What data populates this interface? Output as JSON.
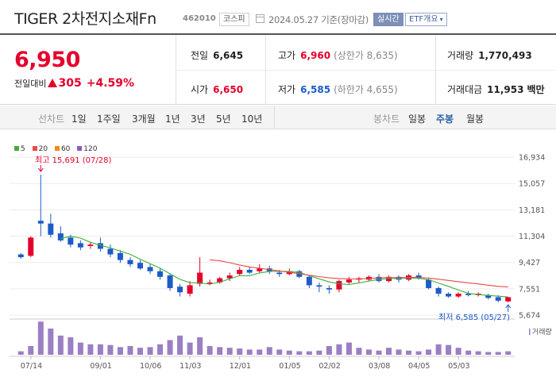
{
  "header": {
    "name": "TIGER 2차전지소재Fn",
    "code": "462010",
    "market": "코스피",
    "date": "2024.05.27 기준(장마감)",
    "realtime": "실시간",
    "etf_info": "ETF개요"
  },
  "summary": {
    "price": "6,950",
    "change_label": "전일대비",
    "change": "305",
    "change_pct": "+4.59%",
    "prev_label": "전일",
    "prev": "6,645",
    "open_label": "시가",
    "open": "6,650",
    "high_label": "고가",
    "high": "6,960",
    "high_limit": "(상한가 8,635)",
    "low_label": "저가",
    "low": "6,585",
    "low_limit": "(하한가 4,655)",
    "volume_label": "거래량",
    "volume": "1,770,493",
    "amount_label": "거래대금",
    "amount": "11,953",
    "amount_unit": "백만"
  },
  "period": {
    "line_title": "선차트",
    "line_items": [
      "1일",
      "1주일",
      "3개월",
      "1년",
      "3년",
      "5년",
      "10년"
    ],
    "candle_title": "봉차트",
    "candle_items": [
      "일봉",
      "주봉",
      "월봉"
    ],
    "active": "주봉"
  },
  "colors": {
    "up": "#e4002b",
    "down": "#1d5bc9",
    "ma5": "#3fae3f",
    "ma20": "#e84a4a",
    "ma60": "#f08a1a",
    "ma120": "#8a5cc2",
    "volume": "#9b7fc4"
  },
  "chart_data": {
    "type": "candlestick",
    "legend": [
      "5",
      "20",
      "60",
      "120"
    ],
    "y_ticks": [
      "16,934",
      "15,057",
      "13,181",
      "11,304",
      "9,427",
      "7,551",
      "5,674"
    ],
    "ylim": [
      5674,
      16934
    ],
    "x_ticks": [
      "07/14",
      "09/01",
      "10/06",
      "11/03",
      "12/01",
      "01/05",
      "02/02",
      "03/08",
      "04/05",
      "05/03"
    ],
    "max_label": "최고 15,691 (07/28)",
    "min_label": "최저 6,585 (05/27)",
    "volume_label": "거래량",
    "candles": [
      [
        10000,
        9800,
        10100,
        9700
      ],
      [
        9900,
        11200,
        11300,
        9800
      ],
      [
        12400,
        12200,
        15691,
        11300
      ],
      [
        12200,
        11400,
        12900,
        11200
      ],
      [
        11500,
        11000,
        12000,
        10900
      ],
      [
        11200,
        10700,
        11400,
        10500
      ],
      [
        10800,
        10500,
        11000,
        10300
      ],
      [
        10600,
        10700,
        10900,
        10400
      ],
      [
        10800,
        10400,
        11200,
        10200
      ],
      [
        10400,
        10000,
        10700,
        9800
      ],
      [
        10100,
        9600,
        10300,
        9400
      ],
      [
        9600,
        9300,
        9800,
        9100
      ],
      [
        9400,
        9000,
        9600,
        8900
      ],
      [
        9100,
        8800,
        9300,
        8600
      ],
      [
        8800,
        8400,
        9000,
        8200
      ],
      [
        8500,
        7600,
        8600,
        7400
      ],
      [
        7700,
        7300,
        7900,
        7000
      ],
      [
        7200,
        7800,
        8100,
        7000
      ],
      [
        7900,
        8700,
        9800,
        7700
      ],
      [
        8000,
        8000,
        8200,
        7800
      ],
      [
        8000,
        8300,
        8400,
        7900
      ],
      [
        8300,
        8500,
        8700,
        8100
      ],
      [
        8600,
        8900,
        9100,
        8500
      ],
      [
        8900,
        8700,
        9100,
        8600
      ],
      [
        8800,
        9000,
        9300,
        8700
      ],
      [
        9000,
        8800,
        9200,
        8600
      ],
      [
        8700,
        8600,
        8900,
        8400
      ],
      [
        8600,
        8800,
        9000,
        8500
      ],
      [
        8800,
        8400,
        8900,
        8300
      ],
      [
        8400,
        7800,
        8500,
        7600
      ],
      [
        7800,
        7700,
        8000,
        7300
      ],
      [
        7600,
        7500,
        7800,
        7200
      ],
      [
        7500,
        8100,
        8200,
        7300
      ],
      [
        8000,
        8200,
        8400,
        7900
      ],
      [
        8200,
        8300,
        8400,
        8000
      ],
      [
        8200,
        8400,
        8500,
        8100
      ],
      [
        8400,
        8100,
        8600,
        8000
      ],
      [
        8100,
        8400,
        8500,
        8000
      ],
      [
        8400,
        8200,
        8500,
        8000
      ],
      [
        8200,
        8500,
        8600,
        8100
      ],
      [
        8500,
        8300,
        8700,
        8200
      ],
      [
        8200,
        7600,
        8300,
        7500
      ],
      [
        7600,
        7200,
        7700,
        7000
      ],
      [
        7200,
        7000,
        7300,
        6900
      ],
      [
        7000,
        7200,
        7300,
        6900
      ],
      [
        7200,
        7100,
        7400,
        7000
      ],
      [
        7100,
        7200,
        7300,
        7000
      ],
      [
        7100,
        6900,
        7200,
        6800
      ],
      [
        6950,
        6700,
        7100,
        6585
      ],
      [
        6650,
        6950,
        6960,
        6585
      ]
    ],
    "volumes": [
      0.1,
      0.25,
      0.95,
      0.75,
      0.55,
      0.5,
      0.35,
      0.3,
      0.3,
      0.28,
      0.22,
      0.25,
      0.2,
      0.22,
      0.3,
      0.42,
      0.55,
      0.35,
      0.5,
      0.25,
      0.22,
      0.2,
      0.18,
      0.15,
      0.15,
      0.22,
      0.15,
      0.12,
      0.1,
      0.1,
      0.12,
      0.25,
      0.3,
      0.35,
      0.2,
      0.15,
      0.12,
      0.2,
      0.15,
      0.12,
      0.1,
      0.15,
      0.3,
      0.28,
      0.2,
      0.12,
      0.1,
      0.08,
      0.08,
      0.1
    ]
  }
}
